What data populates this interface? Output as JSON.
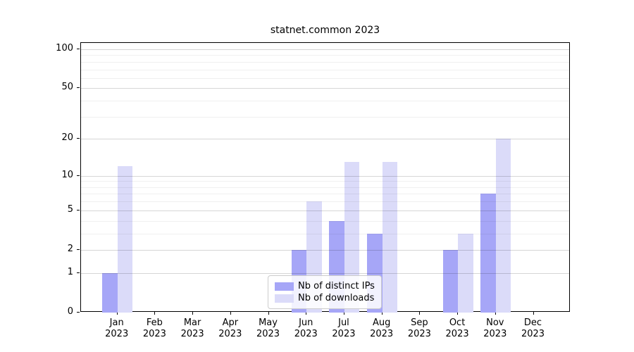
{
  "title": "statnet.common 2023",
  "chart_data": {
    "type": "bar",
    "title": "statnet.common 2023",
    "scale": "log1p",
    "xlabel": "",
    "ylabel": "",
    "categories": [
      "Jan",
      "Feb",
      "Mar",
      "Apr",
      "May",
      "Jun",
      "Jul",
      "Aug",
      "Sep",
      "Oct",
      "Nov",
      "Dec"
    ],
    "x_year": "2023",
    "series": [
      {
        "name": "Nb of distinct IPs",
        "color": "#a6a6f7",
        "values": [
          1,
          0,
          0,
          0,
          0,
          2,
          4,
          3,
          0,
          2,
          7,
          0
        ]
      },
      {
        "name": "Nb of downloads",
        "color": "#dbdbf9",
        "values": [
          12,
          0,
          0,
          0,
          0,
          6,
          13,
          13,
          0,
          3,
          20,
          0
        ]
      }
    ],
    "yticks": [
      0,
      1,
      2,
      5,
      10,
      20,
      50,
      100
    ],
    "minor_yticks": [
      3,
      4,
      6,
      7,
      8,
      9,
      30,
      40,
      60,
      70,
      80,
      90
    ],
    "ylim": [
      0,
      101
    ],
    "grid": true,
    "legend_position": "bottom-center",
    "colors": {
      "grid_major": "rgba(0,0,0,0.16)",
      "grid_minor": "rgba(0,0,0,0.06)",
      "axis": "#000000",
      "background": "#ffffff"
    }
  }
}
